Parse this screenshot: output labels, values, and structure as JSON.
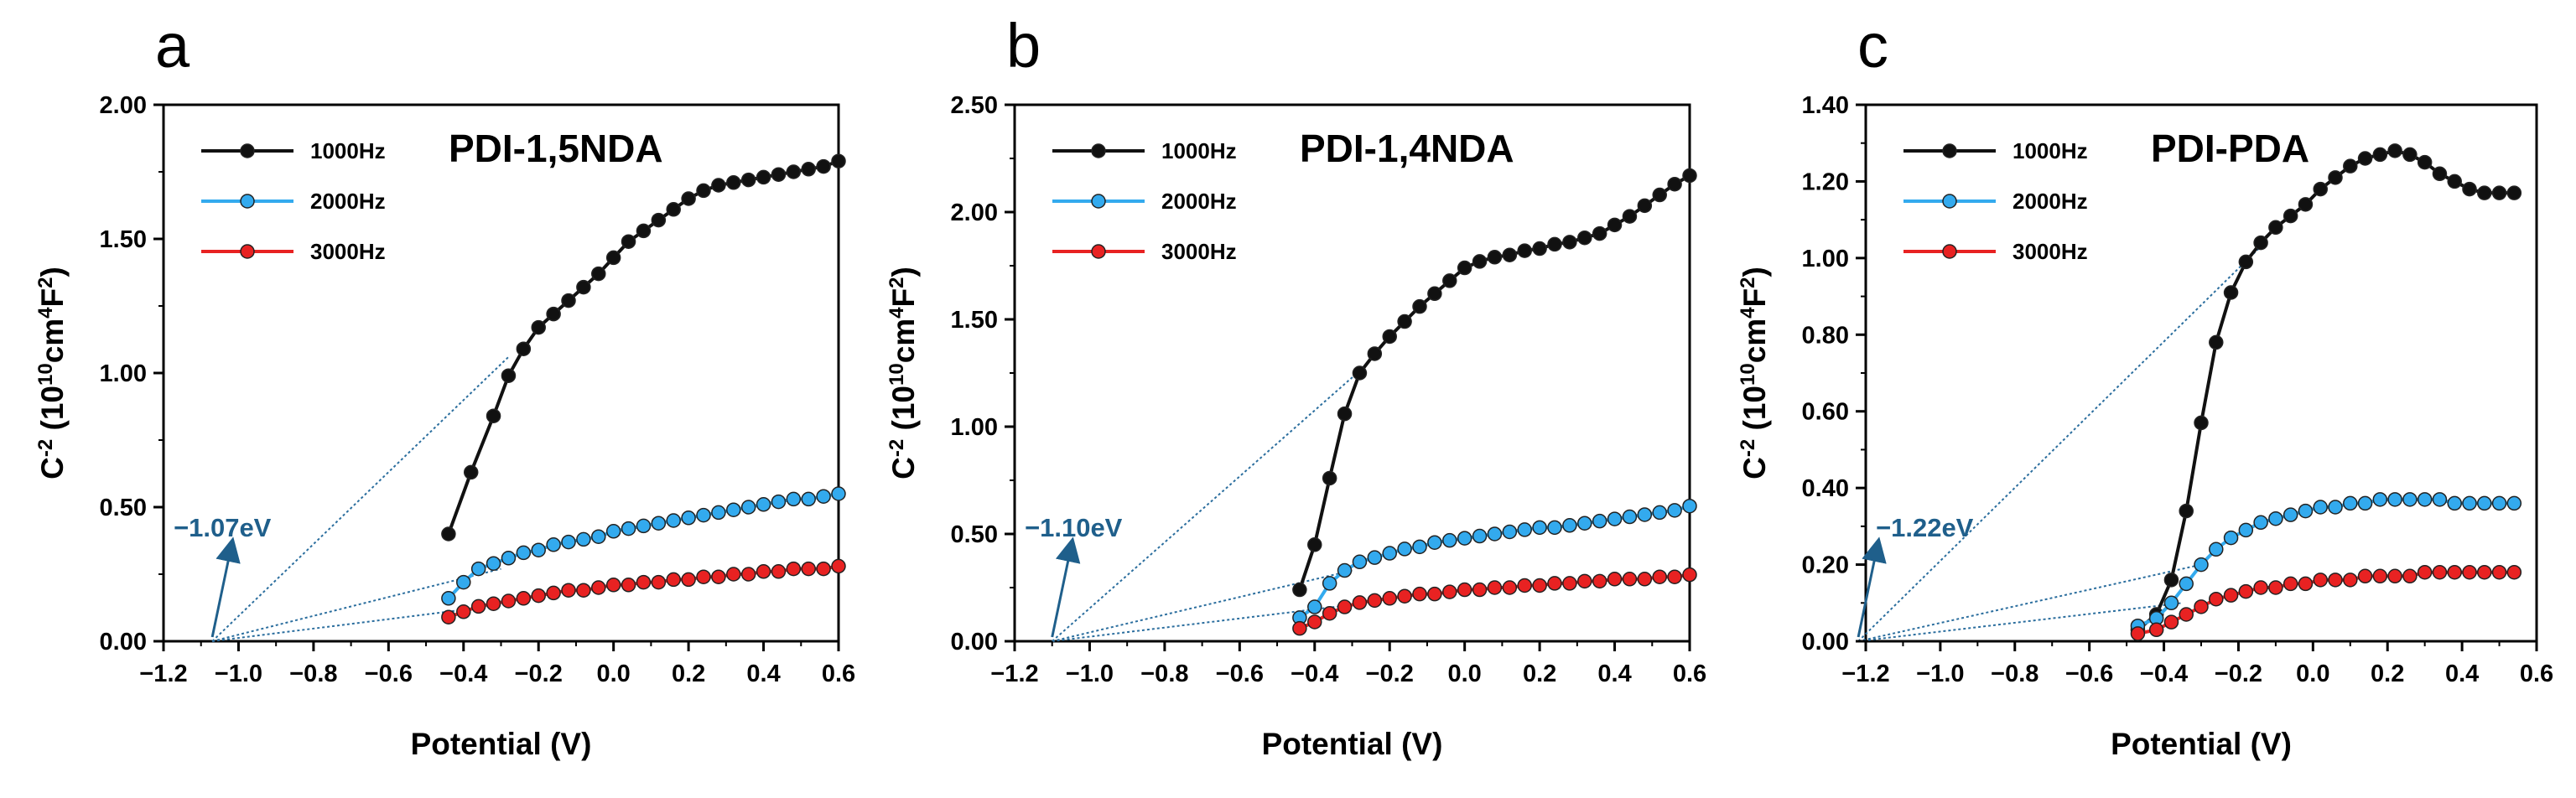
{
  "chart_data": [
    {
      "type": "line",
      "panel": "a",
      "title": "PDI-1,5NDA",
      "xlabel": "Potential (V)",
      "ylabel": {
        "base": "C",
        "base_sup": "-2",
        "unit_open": " (10",
        "unit_sup1": "10",
        "unit_mid": "cm",
        "unit_sup2": "4",
        "unit_F": "F",
        "unit_sup3": "2",
        "unit_close": ")"
      },
      "xlim": [
        -1.2,
        0.6
      ],
      "ylim": [
        0,
        2.0
      ],
      "xticks": [
        "−1.2",
        "−1.0",
        "−0.8",
        "−0.6",
        "−0.4",
        "−0.2",
        "0.0",
        "0.2",
        "0.4",
        "0.6"
      ],
      "yticks": [
        "0.00",
        "0.50",
        "1.00",
        "1.50",
        "2.00"
      ],
      "series": [
        {
          "name": "1000Hz",
          "color": "#111111",
          "x": [
            -0.44,
            -0.38,
            -0.32,
            -0.28,
            -0.24,
            -0.2,
            -0.16,
            -0.12,
            -0.08,
            -0.04,
            0.0,
            0.04,
            0.08,
            0.12,
            0.16,
            0.2,
            0.24,
            0.28,
            0.32,
            0.36,
            0.4,
            0.44,
            0.48,
            0.52,
            0.56,
            0.6
          ],
          "y": [
            0.4,
            0.63,
            0.84,
            0.99,
            1.09,
            1.17,
            1.22,
            1.27,
            1.32,
            1.37,
            1.43,
            1.49,
            1.53,
            1.57,
            1.61,
            1.65,
            1.68,
            1.7,
            1.71,
            1.72,
            1.73,
            1.74,
            1.75,
            1.76,
            1.77,
            1.79
          ]
        },
        {
          "name": "2000Hz",
          "color": "#33aaee",
          "x": [
            -0.44,
            -0.4,
            -0.36,
            -0.32,
            -0.28,
            -0.24,
            -0.2,
            -0.16,
            -0.12,
            -0.08,
            -0.04,
            0.0,
            0.04,
            0.08,
            0.12,
            0.16,
            0.2,
            0.24,
            0.28,
            0.32,
            0.36,
            0.4,
            0.44,
            0.48,
            0.52,
            0.56,
            0.6
          ],
          "y": [
            0.16,
            0.22,
            0.27,
            0.29,
            0.31,
            0.33,
            0.34,
            0.36,
            0.37,
            0.38,
            0.39,
            0.41,
            0.42,
            0.43,
            0.44,
            0.45,
            0.46,
            0.47,
            0.48,
            0.49,
            0.5,
            0.51,
            0.52,
            0.53,
            0.53,
            0.54,
            0.55
          ]
        },
        {
          "name": "3000Hz",
          "color": "#e82222",
          "x": [
            -0.44,
            -0.4,
            -0.36,
            -0.32,
            -0.28,
            -0.24,
            -0.2,
            -0.16,
            -0.12,
            -0.08,
            -0.04,
            0.0,
            0.04,
            0.08,
            0.12,
            0.16,
            0.2,
            0.24,
            0.28,
            0.32,
            0.36,
            0.4,
            0.44,
            0.48,
            0.52,
            0.56,
            0.6
          ],
          "y": [
            0.09,
            0.11,
            0.13,
            0.14,
            0.15,
            0.16,
            0.17,
            0.18,
            0.19,
            0.19,
            0.2,
            0.21,
            0.21,
            0.22,
            0.22,
            0.23,
            0.23,
            0.24,
            0.24,
            0.25,
            0.25,
            0.26,
            0.26,
            0.27,
            0.27,
            0.27,
            0.28
          ]
        }
      ],
      "fit_lines": [
        {
          "x0": -1.07,
          "y0": 0,
          "x1": -0.28,
          "y1": 1.06
        },
        {
          "x0": -1.07,
          "y0": 0,
          "x1": -0.3,
          "y1": 0.27
        },
        {
          "x0": -1.07,
          "y0": 0,
          "x1": -0.3,
          "y1": 0.135
        }
      ],
      "annotation": {
        "text": "−1.07eV",
        "x": -1.07,
        "color": "#1f5f8b"
      }
    },
    {
      "type": "line",
      "panel": "b",
      "title": "PDI-1,4NDA",
      "xlabel": "Potential (V)",
      "ylabel": {
        "base": "C",
        "base_sup": "-2",
        "unit_open": " (10",
        "unit_sup1": "10",
        "unit_mid": "cm",
        "unit_sup2": "4",
        "unit_F": "F",
        "unit_sup3": "2",
        "unit_close": ")"
      },
      "xlim": [
        -1.2,
        0.6
      ],
      "ylim": [
        0,
        2.5
      ],
      "xticks": [
        "−1.2",
        "−1.0",
        "−0.8",
        "−0.6",
        "−0.4",
        "−0.2",
        "0.0",
        "0.2",
        "0.4",
        "0.6"
      ],
      "yticks": [
        "0.00",
        "0.50",
        "1.00",
        "1.50",
        "2.00",
        "2.50"
      ],
      "series": [
        {
          "name": "1000Hz",
          "color": "#111111",
          "x": [
            -0.44,
            -0.4,
            -0.36,
            -0.32,
            -0.28,
            -0.24,
            -0.2,
            -0.16,
            -0.12,
            -0.08,
            -0.04,
            0.0,
            0.04,
            0.08,
            0.12,
            0.16,
            0.2,
            0.24,
            0.28,
            0.32,
            0.36,
            0.4,
            0.44,
            0.48,
            0.52,
            0.56,
            0.6
          ],
          "y": [
            0.24,
            0.45,
            0.76,
            1.06,
            1.25,
            1.34,
            1.42,
            1.49,
            1.56,
            1.62,
            1.68,
            1.74,
            1.77,
            1.79,
            1.8,
            1.82,
            1.83,
            1.85,
            1.86,
            1.88,
            1.9,
            1.94,
            1.98,
            2.03,
            2.08,
            2.13,
            2.17
          ]
        },
        {
          "name": "2000Hz",
          "color": "#33aaee",
          "x": [
            -0.44,
            -0.4,
            -0.36,
            -0.32,
            -0.28,
            -0.24,
            -0.2,
            -0.16,
            -0.12,
            -0.08,
            -0.04,
            0.0,
            0.04,
            0.08,
            0.12,
            0.16,
            0.2,
            0.24,
            0.28,
            0.32,
            0.36,
            0.4,
            0.44,
            0.48,
            0.52,
            0.56,
            0.6
          ],
          "y": [
            0.11,
            0.16,
            0.27,
            0.33,
            0.37,
            0.39,
            0.41,
            0.43,
            0.44,
            0.46,
            0.47,
            0.48,
            0.49,
            0.5,
            0.51,
            0.52,
            0.53,
            0.53,
            0.54,
            0.55,
            0.56,
            0.57,
            0.58,
            0.59,
            0.6,
            0.61,
            0.63
          ]
        },
        {
          "name": "3000Hz",
          "color": "#e82222",
          "x": [
            -0.44,
            -0.4,
            -0.36,
            -0.32,
            -0.28,
            -0.24,
            -0.2,
            -0.16,
            -0.12,
            -0.08,
            -0.04,
            0.0,
            0.04,
            0.08,
            0.12,
            0.16,
            0.2,
            0.24,
            0.28,
            0.32,
            0.36,
            0.4,
            0.44,
            0.48,
            0.52,
            0.56,
            0.6
          ],
          "y": [
            0.06,
            0.09,
            0.13,
            0.16,
            0.18,
            0.19,
            0.2,
            0.21,
            0.22,
            0.22,
            0.23,
            0.24,
            0.24,
            0.25,
            0.25,
            0.26,
            0.26,
            0.27,
            0.27,
            0.28,
            0.28,
            0.29,
            0.29,
            0.29,
            0.3,
            0.3,
            0.31
          ]
        }
      ],
      "fit_lines": [
        {
          "x0": -1.1,
          "y0": 0,
          "x1": -0.28,
          "y1": 1.26
        },
        {
          "x0": -1.1,
          "y0": 0,
          "x1": -0.3,
          "y1": 0.33
        },
        {
          "x0": -1.1,
          "y0": 0,
          "x1": -0.3,
          "y1": 0.17
        }
      ],
      "annotation": {
        "text": "−1.10eV",
        "x": -1.1,
        "color": "#1f5f8b"
      }
    },
    {
      "type": "line",
      "panel": "c",
      "title": "PDI-PDA",
      "xlabel": "Potential (V)",
      "ylabel": {
        "base": "C",
        "base_sup": "-2",
        "unit_open": " (10",
        "unit_sup1": "10",
        "unit_mid": "cm",
        "unit_sup2": "4",
        "unit_F": "F",
        "unit_sup3": "2",
        "unit_close": ")"
      },
      "xlim": [
        -1.2,
        0.6
      ],
      "ylim": [
        0,
        1.4
      ],
      "xticks": [
        "−1.2",
        "−1.0",
        "−0.8",
        "−0.6",
        "−0.4",
        "−0.2",
        "0.0",
        "0.2",
        "0.4",
        "0.6"
      ],
      "yticks": [
        "0.00",
        "0.20",
        "0.40",
        "0.60",
        "0.80",
        "1.00",
        "1.20",
        "1.40"
      ],
      "series": [
        {
          "name": "1000Hz",
          "color": "#111111",
          "x": [
            -0.47,
            -0.42,
            -0.38,
            -0.34,
            -0.3,
            -0.26,
            -0.22,
            -0.18,
            -0.14,
            -0.1,
            -0.06,
            -0.02,
            0.02,
            0.06,
            0.1,
            0.14,
            0.18,
            0.22,
            0.26,
            0.3,
            0.34,
            0.38,
            0.42,
            0.46,
            0.5,
            0.54
          ],
          "y": [
            0.03,
            0.07,
            0.16,
            0.34,
            0.57,
            0.78,
            0.91,
            0.99,
            1.04,
            1.08,
            1.11,
            1.14,
            1.18,
            1.21,
            1.24,
            1.26,
            1.27,
            1.28,
            1.27,
            1.25,
            1.22,
            1.2,
            1.18,
            1.17,
            1.17,
            1.17
          ]
        },
        {
          "name": "2000Hz",
          "color": "#33aaee",
          "x": [
            -0.47,
            -0.42,
            -0.38,
            -0.34,
            -0.3,
            -0.26,
            -0.22,
            -0.18,
            -0.14,
            -0.1,
            -0.06,
            -0.02,
            0.02,
            0.06,
            0.1,
            0.14,
            0.18,
            0.22,
            0.26,
            0.3,
            0.34,
            0.38,
            0.42,
            0.46,
            0.5,
            0.54
          ],
          "y": [
            0.04,
            0.06,
            0.1,
            0.15,
            0.2,
            0.24,
            0.27,
            0.29,
            0.31,
            0.32,
            0.33,
            0.34,
            0.35,
            0.35,
            0.36,
            0.36,
            0.37,
            0.37,
            0.37,
            0.37,
            0.37,
            0.36,
            0.36,
            0.36,
            0.36,
            0.36
          ]
        },
        {
          "name": "3000Hz",
          "color": "#e82222",
          "x": [
            -0.47,
            -0.42,
            -0.38,
            -0.34,
            -0.3,
            -0.26,
            -0.22,
            -0.18,
            -0.14,
            -0.1,
            -0.06,
            -0.02,
            0.02,
            0.06,
            0.1,
            0.14,
            0.18,
            0.22,
            0.26,
            0.3,
            0.34,
            0.38,
            0.42,
            0.46,
            0.5,
            0.54
          ],
          "y": [
            0.02,
            0.03,
            0.05,
            0.07,
            0.09,
            0.11,
            0.12,
            0.13,
            0.14,
            0.14,
            0.15,
            0.15,
            0.16,
            0.16,
            0.16,
            0.17,
            0.17,
            0.17,
            0.17,
            0.18,
            0.18,
            0.18,
            0.18,
            0.18,
            0.18,
            0.18
          ]
        }
      ],
      "fit_lines": [
        {
          "x0": -1.22,
          "y0": 0,
          "x1": -0.14,
          "y1": 1.03
        },
        {
          "x0": -1.22,
          "y0": 0,
          "x1": -0.3,
          "y1": 0.2
        },
        {
          "x0": -1.22,
          "y0": 0,
          "x1": -0.35,
          "y1": 0.1
        }
      ],
      "annotation": {
        "text": "−1.22eV",
        "x": -1.22,
        "color": "#1f5f8b"
      }
    }
  ]
}
